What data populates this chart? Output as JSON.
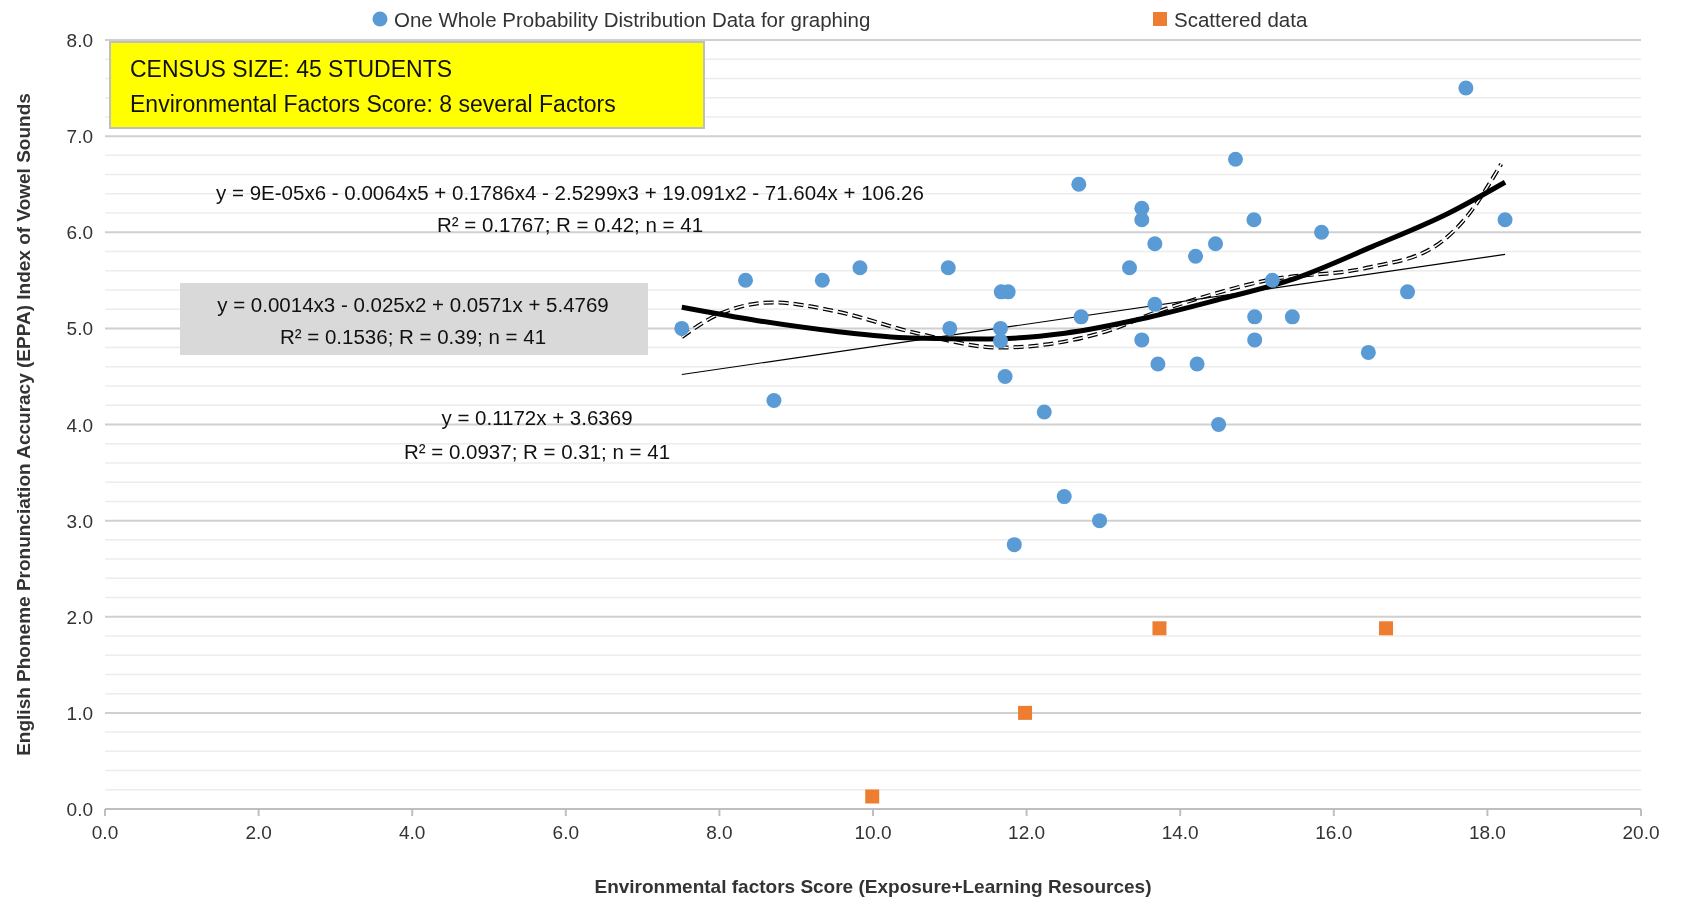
{
  "chart_data": {
    "type": "scatter",
    "xlabel": "Environmental factors Score (Exposure+Learning Resources)",
    "ylabel": "English Phoneme Pronunciation Accuracy (EPPA) Index  of Vowel Sounds",
    "xlim": [
      0,
      20
    ],
    "xticks": [
      {
        "value": 0,
        "label": "0.0"
      },
      {
        "value": 2,
        "label": "2.0"
      },
      {
        "value": 4,
        "label": "4.0"
      },
      {
        "value": 6,
        "label": "6.0"
      },
      {
        "value": 8,
        "label": "8.0"
      },
      {
        "value": 10,
        "label": "10.0"
      },
      {
        "value": 12,
        "label": "12.0"
      },
      {
        "value": 14,
        "label": "14.0"
      },
      {
        "value": 16,
        "label": "16.0"
      },
      {
        "value": 18,
        "label": "18.0"
      },
      {
        "value": 20,
        "label": "20.0"
      }
    ],
    "ylim": [
      0,
      8
    ],
    "yticks": [
      {
        "value": 0,
        "label": "0.0"
      },
      {
        "value": 0.2,
        "label": null
      },
      {
        "value": 0.4,
        "label": null
      },
      {
        "value": 0.6,
        "label": null
      },
      {
        "value": 0.8,
        "label": null
      },
      {
        "value": 1,
        "label": "1.0"
      },
      {
        "value": 1.2,
        "label": null
      },
      {
        "value": 1.4,
        "label": null
      },
      {
        "value": 1.6,
        "label": null
      },
      {
        "value": 1.8,
        "label": null
      },
      {
        "value": 2,
        "label": "2.0"
      },
      {
        "value": 2.2,
        "label": null
      },
      {
        "value": 2.4,
        "label": null
      },
      {
        "value": 2.6,
        "label": null
      },
      {
        "value": 2.8,
        "label": null
      },
      {
        "value": 3,
        "label": "3.0"
      },
      {
        "value": 3.2,
        "label": null
      },
      {
        "value": 3.4,
        "label": null
      },
      {
        "value": 3.6,
        "label": null
      },
      {
        "value": 3.8,
        "label": null
      },
      {
        "value": 4,
        "label": "4.0"
      },
      {
        "value": 4.2,
        "label": null
      },
      {
        "value": 4.4,
        "label": null
      },
      {
        "value": 4.6,
        "label": null
      },
      {
        "value": 4.8,
        "label": null
      },
      {
        "value": 5,
        "label": "5.0"
      },
      {
        "value": 5.2,
        "label": null
      },
      {
        "value": 5.4,
        "label": null
      },
      {
        "value": 5.6,
        "label": null
      },
      {
        "value": 5.8,
        "label": null
      },
      {
        "value": 6,
        "label": "6.0"
      },
      {
        "value": 6.2,
        "label": null
      },
      {
        "value": 6.4,
        "label": null
      },
      {
        "value": 6.6,
        "label": null
      },
      {
        "value": 6.8,
        "label": null
      },
      {
        "value": 7,
        "label": "7.0"
      },
      {
        "value": 7.2,
        "label": null
      },
      {
        "value": 7.4,
        "label": null
      },
      {
        "value": 7.6,
        "label": null
      },
      {
        "value": 7.8,
        "label": null
      },
      {
        "value": 8,
        "label": "8.0"
      }
    ],
    "grid": "y",
    "legend": "top",
    "series": [
      {
        "name": "One Whole Probability Distribution Data for graphing",
        "color": "#5b9bd5",
        "marker": "circle",
        "x": [
          7.51,
          8.34,
          8.71,
          9.34,
          9.83,
          10.98,
          11.0,
          11.67,
          11.76,
          11.66,
          11.66,
          11.72,
          11.84,
          12.23,
          12.49,
          12.68,
          12.71,
          12.95,
          13.34,
          13.5,
          13.5,
          13.5,
          13.67,
          13.67,
          13.71,
          14.2,
          14.22,
          14.46,
          14.5,
          14.72,
          14.96,
          14.97,
          14.97,
          15.2,
          15.46,
          15.84,
          16.45,
          16.96,
          17.72,
          18.23
        ],
        "values": [
          5.0,
          5.5,
          4.25,
          5.5,
          5.63,
          5.63,
          5.0,
          5.38,
          5.38,
          5.0,
          4.87,
          4.5,
          2.75,
          4.13,
          3.25,
          6.5,
          5.12,
          3.0,
          5.63,
          6.25,
          6.13,
          4.88,
          5.88,
          5.25,
          4.63,
          5.75,
          4.63,
          5.88,
          4.0,
          6.76,
          6.13,
          5.12,
          4.88,
          5.5,
          5.12,
          6.0,
          4.75,
          5.38,
          7.5,
          6.13
        ]
      },
      {
        "name": "Scattered data",
        "color": "#ed7d31",
        "marker": "square",
        "x": [
          9.99,
          11.98,
          13.73,
          16.68
        ],
        "values": [
          0.13,
          1.0,
          1.88,
          1.88
        ]
      },
      {
        "type": "line",
        "color": "#000000",
        "line_style": "dashed",
        "x": [
          7.51,
          8.0,
          8.7,
          9.5,
          10.57,
          11.65,
          12.4,
          13.08,
          13.69,
          14.4,
          15.13,
          16.43,
          17.29,
          17.73,
          18.18
        ],
        "values": [
          4.91,
          5.15,
          5.27,
          5.18,
          4.95,
          4.8,
          4.85,
          4.98,
          5.17,
          5.35,
          5.5,
          5.63,
          5.84,
          6.16,
          6.71
        ]
      },
      {
        "type": "line",
        "color": "#000000",
        "line_style": "solid",
        "x": [
          7.51,
          8.5,
          9.5,
          10.5,
          11.5,
          12.5,
          13.5,
          14.5,
          15.5,
          16.5,
          17.5,
          18.23
        ],
        "values": [
          5.22,
          5.08,
          4.97,
          4.9,
          4.89,
          4.95,
          5.1,
          5.3,
          5.52,
          5.85,
          6.2,
          6.52
        ]
      },
      {
        "type": "line",
        "color": "#000000",
        "line_style": "solid",
        "x": [
          7.51,
          18.23
        ],
        "values": [
          4.52,
          5.77
        ]
      }
    ],
    "annotations": [
      "CENSUS SIZE: 45 STUDENTS",
      "Environmental Factors Score: 8 several Factors",
      "y = 9E-05x6 - 0.0064x5 + 0.1786x4 - 2.5299x3 + 19.091x2 - 71.604x + 106.26",
      "R² = 0.1767;  R = 0.42;  n = 41",
      "y = 0.0014x3 - 0.025x2 + 0.0571x + 5.4769",
      "R² = 0.1536;  R = 0.39;  n = 41",
      "y = 0.1172x + 3.6369",
      "R² = 0.0937;  R = 0.31;  n = 41"
    ]
  }
}
